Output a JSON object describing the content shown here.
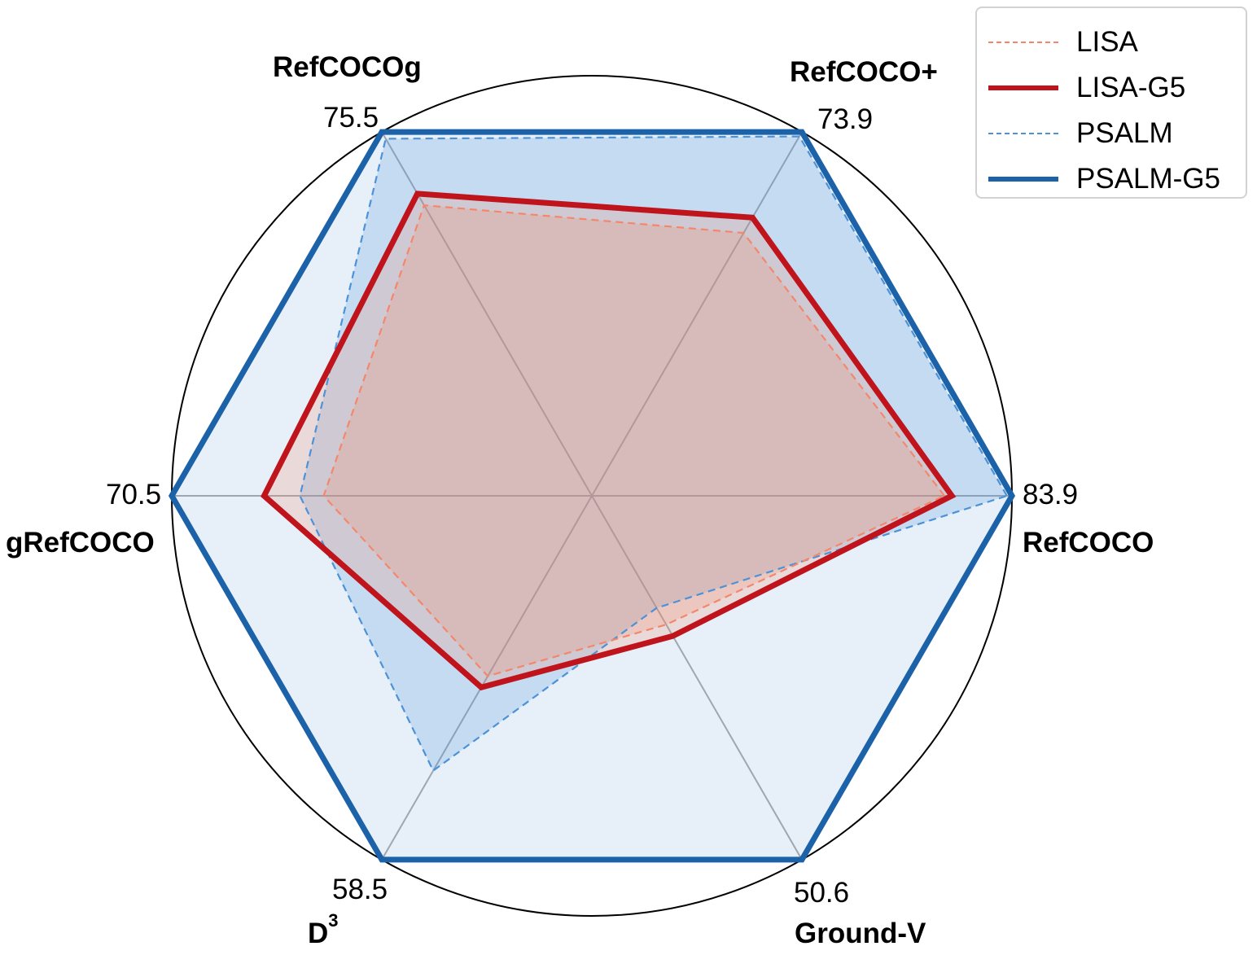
{
  "chart_data": {
    "type": "radar",
    "axes": [
      {
        "name": "RefCOCO",
        "sup": "",
        "max": 83.9,
        "max_label": "83.9"
      },
      {
        "name": "RefCOCO+",
        "sup": "",
        "max": 73.9,
        "max_label": "73.9"
      },
      {
        "name": "RefCOCOg",
        "sup": "",
        "max": 75.5,
        "max_label": "75.5"
      },
      {
        "name": "gRefCOCO",
        "sup": "",
        "max": 70.5,
        "max_label": "70.5"
      },
      {
        "name": "D",
        "sup": "3",
        "max": 58.5,
        "max_label": "58.5"
      },
      {
        "name": "Ground-V",
        "sup": "",
        "max": 50.6,
        "max_label": "50.6"
      }
    ],
    "series": [
      {
        "name": "LISA",
        "color": "#f4876b",
        "style": "dashed",
        "fill": "#f4876b",
        "values": [
          70.4,
          53.4,
          60.3,
          45.0,
          29.0,
          17.9
        ]
      },
      {
        "name": "LISA-G5",
        "color": "#c0141c",
        "style": "solid",
        "fill": "#f4876b",
        "values": [
          71.9,
          56.5,
          62.7,
          55.0,
          30.8,
          19.5
        ]
      },
      {
        "name": "PSALM",
        "color": "#4b92d8",
        "style": "dashed",
        "fill": "#4b92d8",
        "values": [
          82.9,
          73.0,
          74.1,
          49.0,
          44.2,
          15.6
        ]
      },
      {
        "name": "PSALM-G5",
        "color": "#1c62a8",
        "style": "solid",
        "fill": "#a8c8e8",
        "values": [
          83.9,
          73.9,
          75.5,
          70.5,
          58.5,
          50.6
        ]
      }
    ],
    "legend_position": "top-right",
    "grid": true
  }
}
